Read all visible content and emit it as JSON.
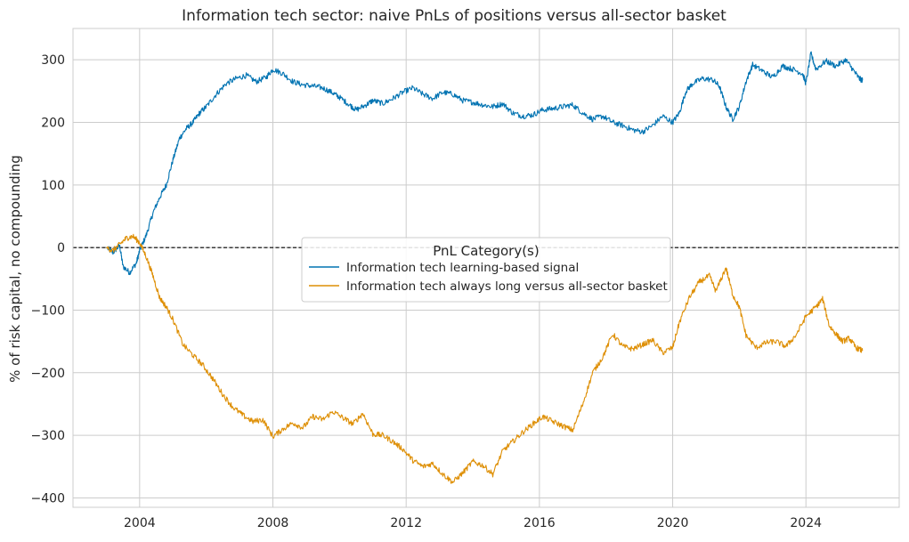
{
  "chart_data": {
    "type": "line",
    "title": "Information tech sector: naive PnLs of positions versus all-sector basket",
    "xlabel": "",
    "ylabel": "% of risk capital, no compounding",
    "xlim": [
      2002.0,
      2026.8
    ],
    "ylim": [
      -415,
      350
    ],
    "x_ticks": [
      2004,
      2008,
      2012,
      2016,
      2020,
      2024
    ],
    "y_ticks": [
      300,
      200,
      100,
      0,
      -100,
      -200,
      -300,
      -400
    ],
    "y_tick_labels": [
      "300",
      "200",
      "100",
      "0",
      "−100",
      "−200",
      "−300",
      "−400"
    ],
    "grid": true,
    "zero_line": {
      "y": 0,
      "style": "dashed",
      "color": "#000000"
    },
    "legend": {
      "title": "PnL Category(s)",
      "placement": "center-right"
    },
    "series": [
      {
        "name": "Information tech learning-based signal",
        "color": "#0173b2",
        "points": [
          [
            2003.0,
            0
          ],
          [
            2003.2,
            -8
          ],
          [
            2003.4,
            3
          ],
          [
            2003.5,
            -30
          ],
          [
            2003.7,
            -40
          ],
          [
            2003.9,
            -25
          ],
          [
            2004.0,
            -5
          ],
          [
            2004.2,
            20
          ],
          [
            2004.4,
            55
          ],
          [
            2004.6,
            80
          ],
          [
            2004.8,
            100
          ],
          [
            2005.0,
            140
          ],
          [
            2005.2,
            175
          ],
          [
            2005.4,
            190
          ],
          [
            2005.6,
            200
          ],
          [
            2005.8,
            215
          ],
          [
            2006.0,
            225
          ],
          [
            2006.3,
            245
          ],
          [
            2006.6,
            262
          ],
          [
            2006.9,
            270
          ],
          [
            2007.2,
            275
          ],
          [
            2007.5,
            265
          ],
          [
            2007.8,
            272
          ],
          [
            2008.0,
            285
          ],
          [
            2008.3,
            278
          ],
          [
            2008.6,
            265
          ],
          [
            2008.9,
            260
          ],
          [
            2009.2,
            258
          ],
          [
            2009.5,
            255
          ],
          [
            2009.8,
            247
          ],
          [
            2010.0,
            240
          ],
          [
            2010.3,
            228
          ],
          [
            2010.5,
            220
          ],
          [
            2010.8,
            228
          ],
          [
            2011.0,
            235
          ],
          [
            2011.3,
            230
          ],
          [
            2011.6,
            238
          ],
          [
            2011.9,
            248
          ],
          [
            2012.2,
            255
          ],
          [
            2012.5,
            245
          ],
          [
            2012.8,
            238
          ],
          [
            2013.1,
            248
          ],
          [
            2013.4,
            245
          ],
          [
            2013.7,
            235
          ],
          [
            2014.0,
            232
          ],
          [
            2014.3,
            228
          ],
          [
            2014.6,
            225
          ],
          [
            2014.9,
            230
          ],
          [
            2015.2,
            215
          ],
          [
            2015.5,
            210
          ],
          [
            2015.8,
            212
          ],
          [
            2016.1,
            220
          ],
          [
            2016.4,
            222
          ],
          [
            2016.7,
            225
          ],
          [
            2017.0,
            228
          ],
          [
            2017.3,
            215
          ],
          [
            2017.6,
            205
          ],
          [
            2017.9,
            210
          ],
          [
            2018.2,
            200
          ],
          [
            2018.5,
            195
          ],
          [
            2018.8,
            188
          ],
          [
            2019.1,
            185
          ],
          [
            2019.4,
            195
          ],
          [
            2019.7,
            210
          ],
          [
            2020.0,
            200
          ],
          [
            2020.2,
            215
          ],
          [
            2020.4,
            250
          ],
          [
            2020.6,
            262
          ],
          [
            2020.9,
            270
          ],
          [
            2021.2,
            268
          ],
          [
            2021.4,
            258
          ],
          [
            2021.6,
            225
          ],
          [
            2021.8,
            205
          ],
          [
            2022.0,
            225
          ],
          [
            2022.2,
            265
          ],
          [
            2022.4,
            292
          ],
          [
            2022.7,
            282
          ],
          [
            2023.0,
            272
          ],
          [
            2023.3,
            290
          ],
          [
            2023.6,
            285
          ],
          [
            2023.9,
            278
          ],
          [
            2024.0,
            262
          ],
          [
            2024.15,
            310
          ],
          [
            2024.3,
            285
          ],
          [
            2024.6,
            298
          ],
          [
            2024.9,
            290
          ],
          [
            2025.2,
            300
          ],
          [
            2025.4,
            285
          ],
          [
            2025.6,
            270
          ],
          [
            2025.7,
            267
          ]
        ]
      },
      {
        "name": "Information tech always long versus all-sector basket",
        "color": "#de8f05",
        "points": [
          [
            2003.0,
            0
          ],
          [
            2003.2,
            -5
          ],
          [
            2003.4,
            5
          ],
          [
            2003.6,
            15
          ],
          [
            2003.8,
            18
          ],
          [
            2004.0,
            8
          ],
          [
            2004.2,
            -15
          ],
          [
            2004.4,
            -45
          ],
          [
            2004.6,
            -80
          ],
          [
            2004.8,
            -95
          ],
          [
            2005.0,
            -115
          ],
          [
            2005.3,
            -155
          ],
          [
            2005.6,
            -172
          ],
          [
            2005.9,
            -188
          ],
          [
            2006.2,
            -210
          ],
          [
            2006.5,
            -235
          ],
          [
            2006.8,
            -255
          ],
          [
            2007.1,
            -268
          ],
          [
            2007.4,
            -278
          ],
          [
            2007.7,
            -275
          ],
          [
            2008.0,
            -302
          ],
          [
            2008.3,
            -290
          ],
          [
            2008.6,
            -280
          ],
          [
            2008.9,
            -288
          ],
          [
            2009.2,
            -270
          ],
          [
            2009.5,
            -275
          ],
          [
            2009.8,
            -262
          ],
          [
            2010.1,
            -272
          ],
          [
            2010.4,
            -282
          ],
          [
            2010.7,
            -265
          ],
          [
            2011.0,
            -298
          ],
          [
            2011.3,
            -300
          ],
          [
            2011.6,
            -310
          ],
          [
            2011.9,
            -322
          ],
          [
            2012.2,
            -340
          ],
          [
            2012.5,
            -350
          ],
          [
            2012.8,
            -345
          ],
          [
            2013.1,
            -362
          ],
          [
            2013.4,
            -375
          ],
          [
            2013.7,
            -360
          ],
          [
            2014.0,
            -342
          ],
          [
            2014.3,
            -348
          ],
          [
            2014.6,
            -362
          ],
          [
            2014.9,
            -325
          ],
          [
            2015.2,
            -310
          ],
          [
            2015.5,
            -295
          ],
          [
            2015.8,
            -282
          ],
          [
            2016.1,
            -270
          ],
          [
            2016.4,
            -278
          ],
          [
            2016.7,
            -285
          ],
          [
            2017.0,
            -292
          ],
          [
            2017.3,
            -250
          ],
          [
            2017.6,
            -200
          ],
          [
            2017.9,
            -175
          ],
          [
            2018.2,
            -138
          ],
          [
            2018.5,
            -158
          ],
          [
            2018.8,
            -162
          ],
          [
            2019.1,
            -155
          ],
          [
            2019.4,
            -148
          ],
          [
            2019.7,
            -168
          ],
          [
            2020.0,
            -160
          ],
          [
            2020.2,
            -120
          ],
          [
            2020.5,
            -80
          ],
          [
            2020.8,
            -55
          ],
          [
            2021.1,
            -45
          ],
          [
            2021.3,
            -70
          ],
          [
            2021.6,
            -32
          ],
          [
            2021.8,
            -75
          ],
          [
            2022.0,
            -95
          ],
          [
            2022.2,
            -140
          ],
          [
            2022.5,
            -160
          ],
          [
            2022.8,
            -152
          ],
          [
            2023.1,
            -150
          ],
          [
            2023.4,
            -158
          ],
          [
            2023.7,
            -140
          ],
          [
            2024.0,
            -110
          ],
          [
            2024.3,
            -95
          ],
          [
            2024.5,
            -82
          ],
          [
            2024.7,
            -125
          ],
          [
            2024.9,
            -138
          ],
          [
            2025.1,
            -150
          ],
          [
            2025.3,
            -145
          ],
          [
            2025.5,
            -160
          ],
          [
            2025.7,
            -165
          ]
        ]
      }
    ]
  }
}
